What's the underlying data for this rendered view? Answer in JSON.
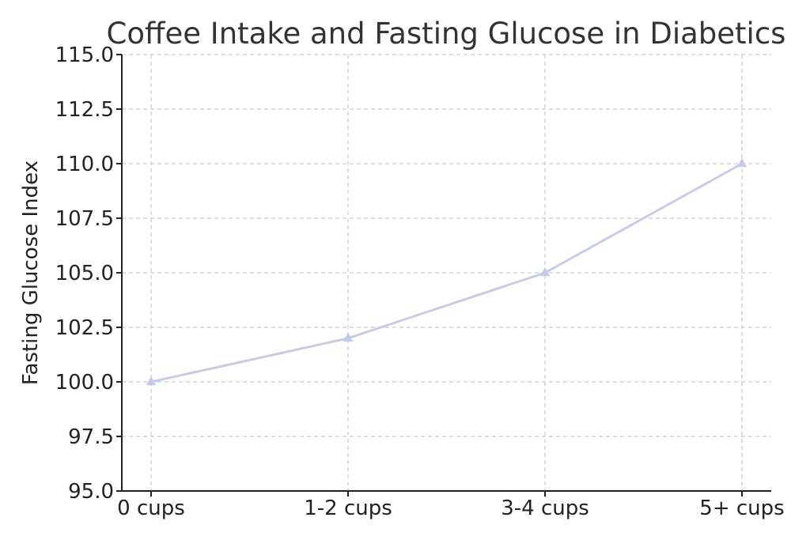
{
  "chart_data": {
    "type": "line",
    "title": "Coffee Intake and Fasting Glucose in Diabetics",
    "xlabel": "",
    "ylabel": "Fasting Glucose Index",
    "categories": [
      "0 cups",
      "1-2 cups",
      "3-4 cups",
      "5+ cups"
    ],
    "series": [
      {
        "values": [
          100.0,
          102.0,
          105.0,
          110.0
        ],
        "color": "#c5cbe9",
        "marker": "triangle"
      }
    ],
    "ylim": [
      95.0,
      115.0
    ],
    "yticks": [
      "95.0",
      "97.5",
      "100.0",
      "102.5",
      "105.0",
      "107.5",
      "110.0",
      "112.5",
      "115.0"
    ],
    "grid": true,
    "legend": "none"
  }
}
